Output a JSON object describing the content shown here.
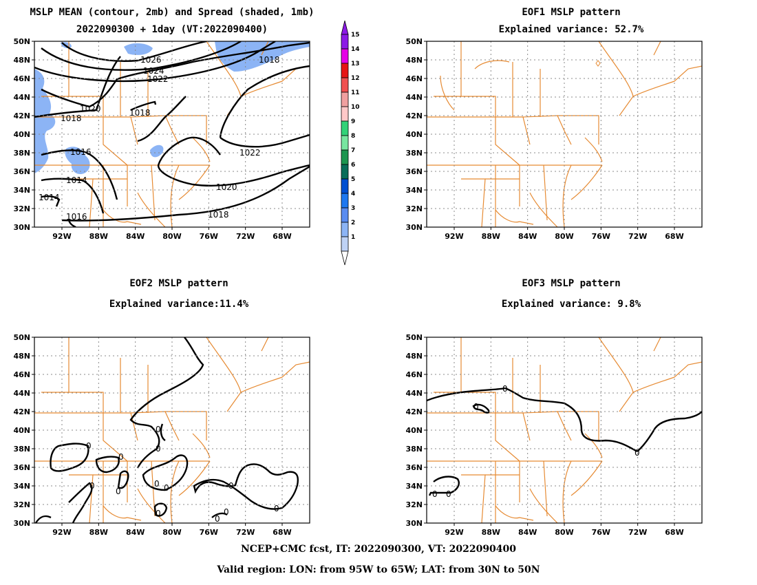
{
  "panels": [
    {
      "id": "mean",
      "title_lines": [
        "MSLP MEAN (contour, 2mb) and Spread (shaded, 1mb)",
        "2022090300 + 1day (VT:2022090400)"
      ],
      "contour_labels": [
        "1026",
        "1024",
        "1022",
        "1020",
        "1018",
        "1018",
        "1016",
        "1014",
        "1014",
        "1016",
        "1022",
        "1020",
        "1018",
        "1018"
      ]
    },
    {
      "id": "eof1",
      "title_lines": [
        "EOF1 MSLP pattern",
        "Explained variance: 52.7%"
      ],
      "contour_labels": []
    },
    {
      "id": "eof2",
      "title_lines": [
        "EOF2 MSLP pattern",
        "Explained variance:11.4%"
      ],
      "contour_labels": [
        "0",
        "0",
        "0",
        "0",
        "0",
        "0",
        "0",
        "0",
        "0",
        "0",
        "0",
        "0",
        "0"
      ]
    },
    {
      "id": "eof3",
      "title_lines": [
        "EOF3 MSLP pattern",
        "Explained variance: 9.8%"
      ],
      "contour_labels": [
        "0",
        "0",
        "0",
        "0",
        "0"
      ]
    }
  ],
  "axes": {
    "lat_ticks": [
      "50N",
      "48N",
      "46N",
      "44N",
      "42N",
      "40N",
      "38N",
      "36N",
      "34N",
      "32N",
      "30N"
    ],
    "lon_ticks": [
      "92W",
      "88W",
      "84W",
      "80W",
      "76W",
      "72W",
      "68W"
    ]
  },
  "colorbar": {
    "labels": [
      "15",
      "14",
      "13",
      "12",
      "11",
      "10",
      "9",
      "8",
      "7",
      "6",
      "5",
      "4",
      "3",
      "2",
      "1"
    ],
    "colors": [
      "#8c1ae6",
      "#e600e6",
      "#e61414",
      "#f05050",
      "#f0a0a0",
      "#ffc8c8",
      "#32d278",
      "#78e6a0",
      "#1e9650",
      "#0a6e5a",
      "#0050d2",
      "#1e78f0",
      "#5a8cf0",
      "#8cb4f5",
      "#bed2f5"
    ]
  },
  "colors": {
    "map_lines": "#e68a32",
    "contour": "#000000",
    "spread_fill": "#8cb4f5",
    "grid": "#888888"
  },
  "footer": {
    "line1": "NCEP+CMC fcst, IT: 2022090300, VT: 2022090400",
    "line2": "Valid region: LON: from 95W to 65W; LAT: from 30N to 50N"
  }
}
